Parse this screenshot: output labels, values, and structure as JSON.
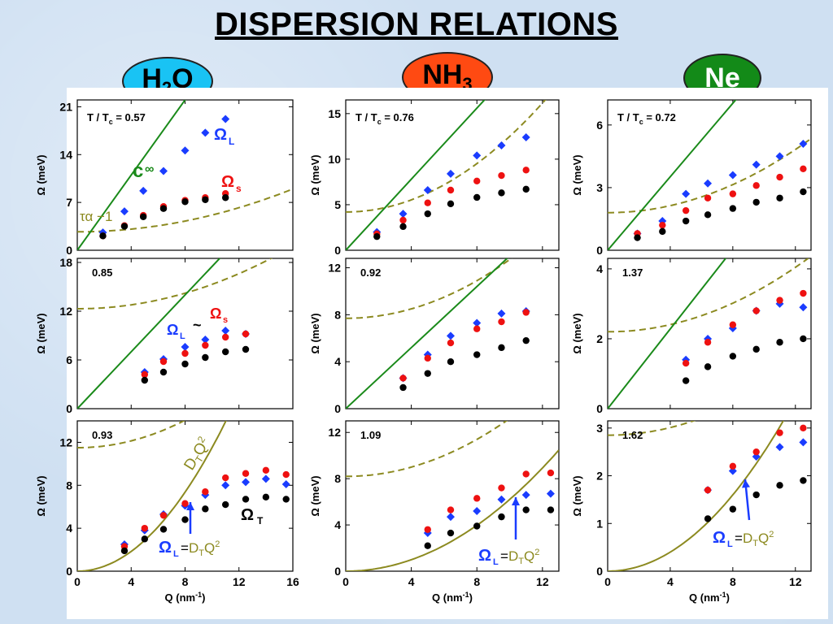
{
  "title": "DISPERSION RELATIONS",
  "badges": {
    "h2o": "H2O",
    "nh3": "NH3",
    "ne": "Ne"
  },
  "colors": {
    "L": "#1a3cff",
    "S": "#ee1111",
    "T": "#000000",
    "line": "#1a8a1a",
    "dashed": "#8c8a20",
    "dtq2": "#8c8a20"
  },
  "axis_labels": {
    "y": "Ω (meV)",
    "x": "Q (nm-1)"
  },
  "chart_data": [
    {
      "type": "scatter",
      "col": 0,
      "row": 0,
      "annotation": "T / Tc = 0.57",
      "xlim": [
        0,
        16
      ],
      "ylim": [
        0,
        22
      ],
      "yticks": [
        0,
        7,
        14,
        21
      ],
      "green_line": {
        "slope": 2.75
      },
      "dashed": {
        "a": 2.7,
        "b": 0.0245
      },
      "series": [
        {
          "name": "Ω L",
          "x": [
            1.9,
            3.5,
            4.9,
            6.4,
            8.0,
            9.5,
            11.0
          ],
          "values": [
            2.6,
            5.7,
            8.7,
            11.6,
            14.6,
            17.2,
            19.2
          ]
        },
        {
          "name": "Ω S",
          "x": [
            1.9,
            3.5,
            4.9,
            6.4,
            8.0,
            9.5,
            11.0
          ],
          "values": [
            2.1,
            3.6,
            5.1,
            6.4,
            7.3,
            7.7,
            8.3
          ]
        },
        {
          "name": "",
          "x": [
            1.9,
            3.5,
            4.9,
            6.4,
            8.0,
            9.5,
            11.0
          ],
          "values": [
            2.1,
            3.5,
            4.9,
            6.1,
            7.1,
            7.4,
            7.7
          ]
        }
      ],
      "labels": [
        "τα −1",
        "c∞",
        "Ω L",
        "Ω s"
      ]
    },
    {
      "type": "scatter",
      "col": 1,
      "row": 0,
      "annotation": "T / Tc = 0.76",
      "xlim": [
        0,
        13
      ],
      "ylim": [
        0,
        16.5
      ],
      "yticks": [
        0,
        5,
        10,
        15
      ],
      "green_line": {
        "slope": 1.95
      },
      "dashed": {
        "a": 4.2,
        "b": 0.083
      },
      "series": [
        {
          "name": "Ω L",
          "x": [
            1.9,
            3.5,
            5.0,
            6.4,
            8.0,
            9.5,
            11.0
          ],
          "values": [
            2.0,
            4.0,
            6.6,
            8.4,
            10.4,
            11.5,
            12.4
          ]
        },
        {
          "name": "Ω S",
          "x": [
            1.9,
            3.5,
            5.0,
            6.4,
            8.0,
            9.5,
            11.0
          ],
          "values": [
            1.8,
            3.3,
            5.2,
            6.6,
            7.6,
            8.2,
            8.8
          ]
        },
        {
          "name": "",
          "x": [
            1.9,
            3.5,
            5.0,
            6.4,
            8.0,
            9.5,
            11.0
          ],
          "values": [
            1.5,
            2.6,
            4.0,
            5.1,
            5.8,
            6.3,
            6.7
          ]
        }
      ]
    },
    {
      "type": "scatter",
      "col": 2,
      "row": 0,
      "annotation": "T / Tc = 0.72",
      "xlim": [
        0,
        13
      ],
      "ylim": [
        0,
        7.2
      ],
      "yticks": [
        0,
        3,
        6
      ],
      "green_line": {
        "slope": 0.88
      },
      "dashed": {
        "a": 1.8,
        "b": 0.021
      },
      "series": [
        {
          "name": "Ω L",
          "x": [
            1.9,
            3.5,
            5.0,
            6.4,
            8.0,
            9.5,
            11.0,
            12.5
          ],
          "values": [
            0.8,
            1.4,
            2.7,
            3.2,
            3.6,
            4.1,
            4.5,
            5.1
          ]
        },
        {
          "name": "Ω S",
          "x": [
            1.9,
            3.5,
            5.0,
            6.4,
            8.0,
            9.5,
            11.0,
            12.5
          ],
          "values": [
            0.8,
            1.2,
            1.9,
            2.5,
            2.7,
            3.1,
            3.5,
            3.9
          ]
        },
        {
          "name": "",
          "x": [
            1.9,
            3.5,
            5.0,
            6.4,
            8.0,
            9.5,
            11.0,
            12.5
          ],
          "values": [
            0.6,
            0.9,
            1.4,
            1.7,
            2.0,
            2.3,
            2.5,
            2.8
          ]
        }
      ]
    },
    {
      "type": "scatter",
      "col": 0,
      "row": 1,
      "annotation": "0.85",
      "xlim": [
        0,
        16
      ],
      "ylim": [
        0,
        18.5
      ],
      "yticks": [
        0,
        6,
        12,
        18
      ],
      "green_line": {
        "slope": 1.75
      },
      "dashed": {
        "a": 12.3,
        "b": 0.03
      },
      "series": [
        {
          "name": "Ω L",
          "x": [
            5.0,
            6.4,
            8.0,
            9.5,
            11.0,
            12.5
          ],
          "values": [
            4.5,
            6.1,
            7.6,
            8.5,
            9.6,
            9.2
          ]
        },
        {
          "name": "Ω S",
          "x": [
            5.0,
            6.4,
            8.0,
            9.5,
            11.0,
            12.5
          ],
          "values": [
            4.2,
            5.8,
            6.8,
            7.8,
            8.8,
            9.2
          ]
        },
        {
          "name": "",
          "x": [
            5.0,
            6.4,
            8.0,
            9.5,
            11.0,
            12.5
          ],
          "values": [
            3.5,
            4.5,
            5.5,
            6.3,
            7.0,
            7.3
          ]
        }
      ],
      "labels": [
        "ΩL",
        "~",
        "Ωs"
      ]
    },
    {
      "type": "scatter",
      "col": 1,
      "row": 1,
      "annotation": "0.92",
      "xlim": [
        0,
        13
      ],
      "ylim": [
        0,
        12.8
      ],
      "yticks": [
        0,
        4,
        8,
        12
      ],
      "green_line": {
        "slope": 1.3
      },
      "dashed": {
        "a": 7.7,
        "b": 0.05
      },
      "series": [
        {
          "name": "Ω L",
          "x": [
            3.5,
            5.0,
            6.4,
            8.0,
            9.5,
            11.0
          ],
          "values": [
            2.6,
            4.6,
            6.2,
            7.3,
            8.1,
            8.3
          ]
        },
        {
          "name": "Ω S",
          "x": [
            3.5,
            5.0,
            6.4,
            8.0,
            9.5,
            11.0
          ],
          "values": [
            2.6,
            4.3,
            5.6,
            6.8,
            7.4,
            8.2
          ]
        },
        {
          "name": "",
          "x": [
            3.5,
            5.0,
            6.4,
            8.0,
            9.5,
            11.0
          ],
          "values": [
            1.8,
            3.0,
            4.0,
            4.6,
            5.2,
            5.8
          ]
        }
      ]
    },
    {
      "type": "scatter",
      "col": 2,
      "row": 1,
      "annotation": "1.37",
      "xlim": [
        0,
        13
      ],
      "ylim": [
        0,
        4.3
      ],
      "yticks": [
        0,
        2,
        4
      ],
      "green_line": {
        "slope": 0.57
      },
      "dashed": {
        "a": 2.2,
        "b": 0.0128
      },
      "series": [
        {
          "name": "Ω L",
          "x": [
            5.0,
            6.4,
            8.0,
            9.5,
            11.0,
            12.5
          ],
          "values": [
            1.4,
            2.0,
            2.3,
            2.8,
            3.0,
            2.9
          ]
        },
        {
          "name": "Ω S",
          "x": [
            5.0,
            6.4,
            8.0,
            9.5,
            11.0,
            12.5
          ],
          "values": [
            1.3,
            1.9,
            2.4,
            2.8,
            3.1,
            3.3
          ]
        },
        {
          "name": "",
          "x": [
            5.0,
            6.4,
            8.0,
            9.5,
            11.0,
            12.5
          ],
          "values": [
            0.8,
            1.2,
            1.5,
            1.7,
            1.9,
            2.0
          ]
        }
      ]
    },
    {
      "type": "scatter",
      "col": 0,
      "row": 2,
      "annotation": "0.93",
      "xlim": [
        0,
        16
      ],
      "xticks": [
        0,
        4,
        8,
        12,
        16
      ],
      "ylim": [
        0,
        14
      ],
      "yticks": [
        0,
        4,
        8,
        12
      ],
      "dashed": {
        "a": 11.5,
        "b": 0.04
      },
      "dtq2": {
        "k": 0.115
      },
      "series": [
        {
          "name": "Ω L",
          "x": [
            3.5,
            5.0,
            6.4,
            8.0,
            9.5,
            11.0,
            12.5,
            14.0,
            15.5
          ],
          "values": [
            2.5,
            3.8,
            5.3,
            6.1,
            7.1,
            8.0,
            8.3,
            8.6,
            8.1
          ]
        },
        {
          "name": "Ω S",
          "x": [
            3.5,
            5.0,
            6.4,
            8.0,
            9.5,
            11.0,
            12.5,
            14.0,
            15.5
          ],
          "values": [
            2.3,
            4.0,
            5.2,
            6.3,
            7.4,
            8.7,
            9.1,
            9.4,
            9.0
          ]
        },
        {
          "name": "Ω T",
          "x": [
            3.5,
            5.0,
            6.4,
            8.0,
            9.5,
            11.0,
            12.5,
            14.0,
            15.5
          ],
          "values": [
            1.9,
            3.0,
            3.9,
            4.8,
            5.8,
            6.2,
            6.7,
            6.9,
            6.7
          ]
        }
      ],
      "labels": [
        "DTQ2",
        "Ω T",
        "ΩL",
        "=DTQ2"
      ]
    },
    {
      "type": "scatter",
      "col": 1,
      "row": 2,
      "annotation": "1.09",
      "xlim": [
        0,
        13
      ],
      "xticks": [
        0,
        4,
        8,
        12
      ],
      "ylim": [
        0,
        13
      ],
      "yticks": [
        0,
        4,
        8,
        12
      ],
      "dashed": {
        "a": 8.2,
        "b": 0.05
      },
      "dtq2": {
        "k": 0.062
      },
      "series": [
        {
          "name": "Ω L",
          "x": [
            5.0,
            6.4,
            8.0,
            9.5,
            11.0,
            12.5
          ],
          "values": [
            3.3,
            4.7,
            5.2,
            6.2,
            6.6,
            6.7
          ]
        },
        {
          "name": "Ω S",
          "x": [
            5.0,
            6.4,
            8.0,
            9.5,
            11.0,
            12.5
          ],
          "values": [
            3.6,
            5.3,
            6.3,
            7.2,
            8.4,
            8.5
          ]
        },
        {
          "name": "",
          "x": [
            5.0,
            6.4,
            8.0,
            9.5,
            11.0,
            12.5
          ],
          "values": [
            2.2,
            3.3,
            3.9,
            4.7,
            5.3,
            5.3
          ]
        }
      ],
      "labels": [
        "ΩL",
        "=DTQ2"
      ]
    },
    {
      "type": "scatter",
      "col": 2,
      "row": 2,
      "annotation": "1.62",
      "xlim": [
        0,
        13
      ],
      "xticks": [
        0,
        4,
        8,
        12
      ],
      "ylim": [
        0,
        3.15
      ],
      "yticks": [
        0,
        1,
        2,
        3
      ],
      "dashed": {
        "a": 2.85,
        "b": 0.01
      },
      "dtq2": {
        "k": 0.025
      },
      "series": [
        {
          "name": "Ω L",
          "x": [
            6.4,
            8.0,
            9.5,
            11.0,
            12.5
          ],
          "values": [
            1.7,
            2.1,
            2.4,
            2.6,
            2.7
          ]
        },
        {
          "name": "Ω S",
          "x": [
            6.4,
            8.0,
            9.5,
            11.0,
            12.5
          ],
          "values": [
            1.7,
            2.2,
            2.5,
            2.9,
            3.0
          ]
        },
        {
          "name": "",
          "x": [
            6.4,
            8.0,
            9.5,
            11.0,
            12.5
          ],
          "values": [
            1.1,
            1.3,
            1.6,
            1.8,
            1.9
          ]
        }
      ],
      "labels": [
        "ΩL",
        "=DTQ2"
      ]
    }
  ]
}
